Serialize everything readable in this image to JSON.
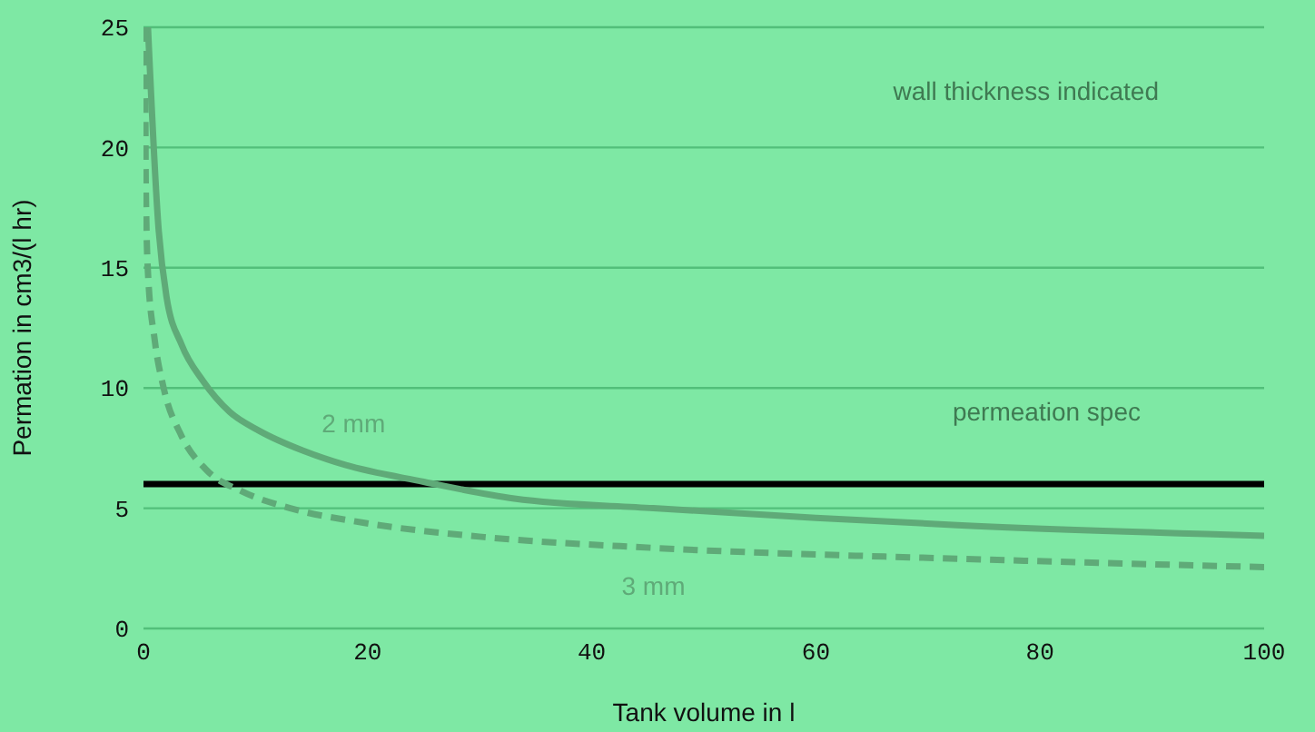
{
  "chart_data": {
    "type": "line",
    "xlabel": "Tank volume in l",
    "ylabel": "Permation in cm3/(l hr)",
    "xlim": [
      0,
      100
    ],
    "ylim": [
      0,
      25
    ],
    "xticks": [
      0,
      20,
      40,
      60,
      80,
      100
    ],
    "yticks": [
      0,
      5,
      10,
      15,
      20,
      25
    ],
    "grid": "y",
    "marker": "none",
    "series": [
      {
        "name": "2 mm",
        "color": "#5faa78",
        "line_style": "solid",
        "x": [
          0.4,
          1.35,
          2.05,
          3.4,
          5.3,
          7.7,
          10.4,
          14.2,
          18,
          25,
          33.1,
          45.5,
          60,
          72.6,
          100
        ],
        "values": [
          25,
          16.6,
          13.8,
          11.8,
          10.3,
          9.0,
          8.2,
          7.4,
          6.8,
          6.1,
          5.4,
          5.0,
          4.6,
          4.3,
          3.85
        ]
      },
      {
        "name": "3 mm",
        "color": "#5faa78",
        "line_style": "dashed",
        "x": [
          0.15,
          0.2,
          0.4,
          1,
          1.8,
          3.4,
          5.6,
          8.8,
          13.1,
          19.6,
          30.4,
          45.5,
          72.6,
          100
        ],
        "values": [
          25,
          18.6,
          14.8,
          12.0,
          10.0,
          8.0,
          6.6,
          5.7,
          5.0,
          4.4,
          3.8,
          3.35,
          2.9,
          2.55
        ]
      }
    ],
    "ref_lines": [
      {
        "axis": "y",
        "value": 6,
        "label": "permeation spec",
        "color": "#000000"
      }
    ],
    "annotations": [
      "wall thickness indicated"
    ]
  }
}
